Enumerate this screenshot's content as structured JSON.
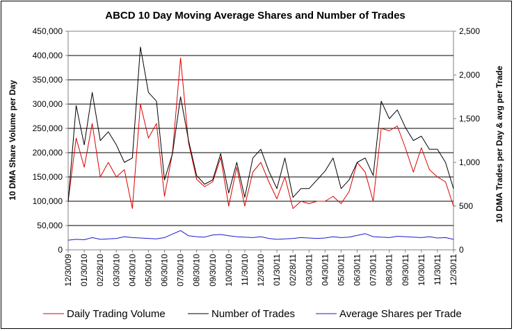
{
  "chart_data": {
    "type": "line",
    "title": "ABCD 10 Day Moving Average Shares and Number of Trades",
    "ylabel_left": "10 DMA Share Volume per Day",
    "ylabel_right": "10 DMA Trades per Day & avg per Trade",
    "ylim_left": [
      0,
      450000
    ],
    "ylim_right": [
      0,
      2500
    ],
    "left_ticks": [
      "0",
      "50,000",
      "100,000",
      "150,000",
      "200,000",
      "250,000",
      "300,000",
      "350,000",
      "400,000",
      "450,000"
    ],
    "right_ticks": [
      "0",
      "500",
      "1,000",
      "1,500",
      "2,000",
      "2,500"
    ],
    "x_tick_labels": [
      "12/30/09",
      "01/30/10",
      "02/28/10",
      "03/30/10",
      "04/30/10",
      "05/30/10",
      "06/30/10",
      "07/30/10",
      "08/30/10",
      "09/30/10",
      "10/30/10",
      "11/30/10",
      "12/30/10",
      "01/30/11",
      "02/28/11",
      "03/30/11",
      "04/30/11",
      "05/30/11",
      "06/30/11",
      "07/30/11",
      "08/30/11",
      "09/30/11",
      "10/30/11",
      "11/30/11",
      "12/30/11"
    ],
    "grid": true,
    "legend_position": "bottom",
    "x": [
      "12/30/09",
      "01/15/10",
      "01/30/10",
      "02/14/10",
      "02/28/10",
      "03/15/10",
      "03/30/10",
      "04/15/10",
      "04/30/10",
      "05/15/10",
      "05/30/10",
      "06/15/10",
      "06/30/10",
      "07/15/10",
      "07/30/10",
      "08/15/10",
      "08/30/10",
      "09/15/10",
      "09/30/10",
      "10/15/10",
      "10/30/10",
      "11/15/10",
      "11/30/10",
      "12/15/10",
      "12/30/10",
      "01/15/11",
      "01/30/11",
      "02/14/11",
      "02/28/11",
      "03/15/11",
      "03/30/11",
      "04/15/11",
      "04/30/11",
      "05/15/11",
      "05/30/11",
      "06/15/11",
      "06/30/11",
      "07/15/11",
      "07/30/11",
      "08/15/11",
      "08/30/11",
      "09/15/11",
      "09/30/11",
      "10/15/11",
      "10/30/11",
      "11/15/11",
      "11/30/11",
      "12/15/11",
      "12/30/11"
    ],
    "series": [
      {
        "name": "Daily Trading Volume",
        "axis": "left",
        "color": "#dd0000",
        "values": [
          100000,
          230000,
          170000,
          260000,
          150000,
          180000,
          150000,
          165000,
          85000,
          300000,
          230000,
          260000,
          110000,
          200000,
          395000,
          220000,
          145000,
          130000,
          140000,
          190000,
          90000,
          170000,
          90000,
          160000,
          180000,
          140000,
          105000,
          150000,
          85000,
          100000,
          95000,
          100000,
          100000,
          110000,
          95000,
          120000,
          180000,
          160000,
          100000,
          250000,
          245000,
          255000,
          210000,
          160000,
          210000,
          165000,
          150000,
          140000,
          90000
        ]
      },
      {
        "name": "Number of Trades",
        "axis": "right",
        "color": "#000000",
        "values": [
          550,
          1650,
          1200,
          1800,
          1250,
          1350,
          1200,
          1000,
          1050,
          2320,
          1800,
          1700,
          800,
          1100,
          1750,
          1250,
          850,
          750,
          800,
          1100,
          650,
          1000,
          600,
          1050,
          1150,
          900,
          700,
          1050,
          600,
          700,
          700,
          800,
          900,
          1050,
          700,
          800,
          1000,
          1050,
          850,
          1700,
          1500,
          1600,
          1400,
          1250,
          1300,
          1150,
          1150,
          1000,
          700
        ]
      },
      {
        "name": "Average Shares per Trade",
        "axis": "right",
        "color": "#1a1acc",
        "values": [
          110,
          120,
          115,
          140,
          120,
          125,
          130,
          150,
          140,
          135,
          130,
          125,
          140,
          180,
          220,
          160,
          150,
          145,
          170,
          175,
          160,
          150,
          145,
          140,
          150,
          130,
          120,
          125,
          130,
          140,
          135,
          130,
          135,
          150,
          140,
          145,
          165,
          185,
          150,
          145,
          140,
          155,
          150,
          145,
          140,
          150,
          135,
          140,
          120
        ]
      }
    ]
  }
}
